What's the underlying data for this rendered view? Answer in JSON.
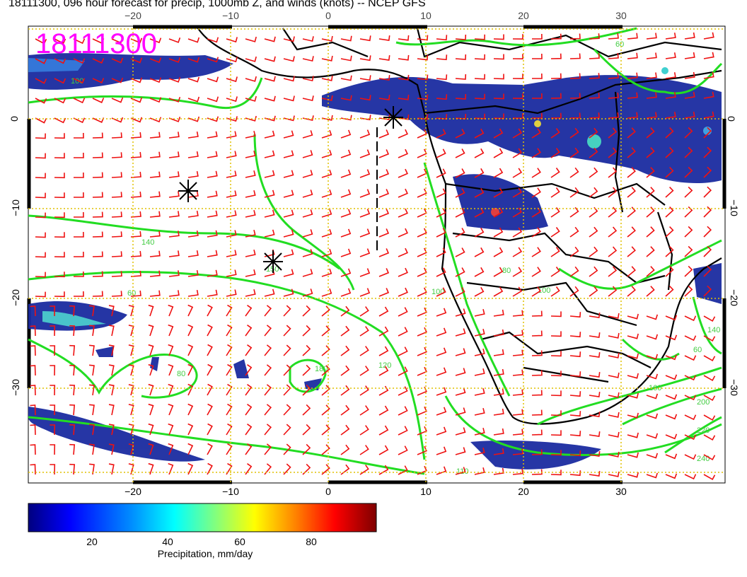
{
  "title": "18111300, 096 hour forecast for precip, 1000mb Z, and winds (knots) -- NCEP GFS",
  "stamp": "18111300",
  "lon_ticks_bottom": [
    "−20",
    "−10",
    "0",
    "10",
    "20",
    "30"
  ],
  "lon_ticks_top": [
    "−20",
    "−10",
    "0",
    "10",
    "20",
    "30"
  ],
  "lat_ticks_left": [
    "0",
    "−10",
    "−20",
    "−30"
  ],
  "lat_ticks_right": [
    "0",
    "−10",
    "−20",
    "−30"
  ],
  "contour_labels": [
    "100",
    "140",
    "60",
    "80",
    "180",
    "150",
    "120",
    "140",
    "160",
    "200",
    "220",
    "240",
    "60",
    "100",
    "80",
    "110",
    "60",
    "100"
  ],
  "colorbar": {
    "ticks": [
      "20",
      "40",
      "60",
      "80"
    ],
    "title": "Precipitation, mm/day",
    "colors": [
      "#00007f",
      "#0000ff",
      "#0080ff",
      "#00ffff",
      "#80ff80",
      "#ffff00",
      "#ff8000",
      "#ff0000",
      "#7f0000"
    ]
  },
  "colors": {
    "stamp": "#ff00ff",
    "contour": "#22dd22",
    "wind_barb": "#ee1111",
    "coast": "#000000",
    "grid": "#e0c000",
    "precip": "#1a2ba0"
  }
}
